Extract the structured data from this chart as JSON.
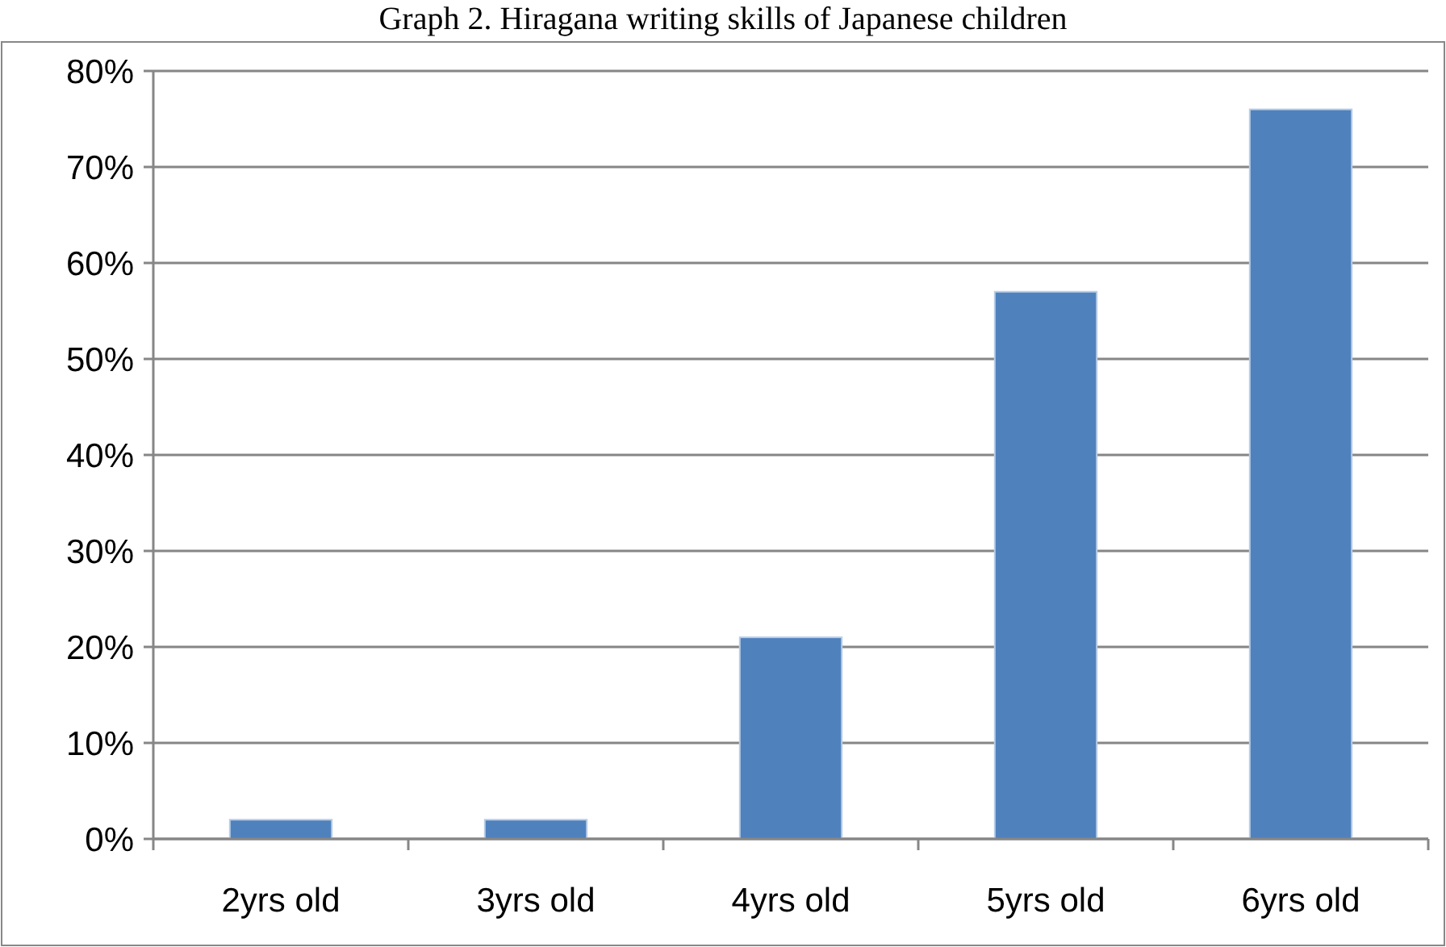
{
  "chart_data": {
    "type": "bar",
    "title": "Graph 2. Hiragana writing skills of Japanese children",
    "categories": [
      "2yrs old",
      "3yrs old",
      "4yrs old",
      "5yrs old",
      "6yrs old"
    ],
    "values": [
      2,
      2,
      21,
      57,
      76
    ],
    "color": "#4f81bd",
    "ylim": [
      0,
      80
    ],
    "yticks": [
      {
        "value": 0,
        "label": "0%"
      },
      {
        "value": 10,
        "label": "10%"
      },
      {
        "value": 20,
        "label": "20%"
      },
      {
        "value": 30,
        "label": "30%"
      },
      {
        "value": 40,
        "label": "40%"
      },
      {
        "value": 50,
        "label": "50%"
      },
      {
        "value": 60,
        "label": "60%"
      },
      {
        "value": 70,
        "label": "70%"
      },
      {
        "value": 80,
        "label": "80%"
      }
    ],
    "grid": "y"
  }
}
